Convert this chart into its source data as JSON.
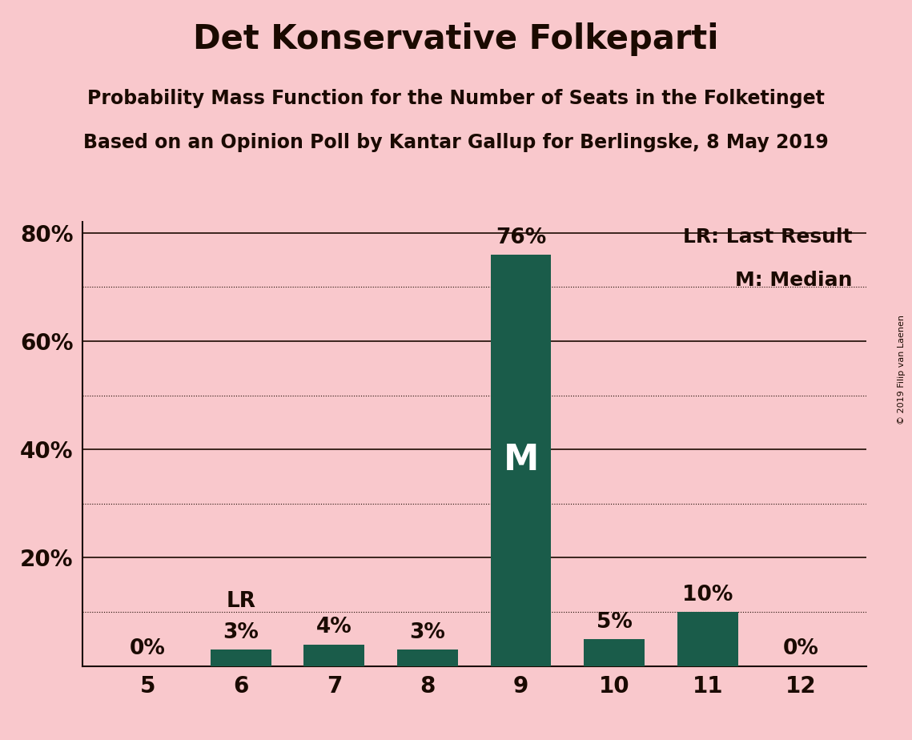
{
  "title": "Det Konservative Folkeparti",
  "subtitle1": "Probability Mass Function for the Number of Seats in the Folketinget",
  "subtitle2": "Based on an Opinion Poll by Kantar Gallup for Berlingske, 8 May 2019",
  "copyright": "© 2019 Filip van Laenen",
  "categories": [
    5,
    6,
    7,
    8,
    9,
    10,
    11,
    12
  ],
  "values": [
    0,
    3,
    4,
    3,
    76,
    5,
    10,
    0
  ],
  "bar_color": "#1a5c4a",
  "background_color": "#f9c8cc",
  "text_color": "#1a0a00",
  "median_seat": 9,
  "last_result_seat": 6,
  "legend_lr": "LR: Last Result",
  "legend_m": "M: Median",
  "ylim_max": 82,
  "ytick_positions": [
    0,
    20,
    40,
    60,
    80
  ],
  "ytick_labels": [
    "",
    "20%",
    "40%",
    "60%",
    "80%"
  ],
  "solid_lines": [
    20,
    40,
    60,
    80
  ],
  "dotted_lines": [
    10,
    30,
    50,
    70
  ],
  "bar_width": 0.65,
  "title_fontsize": 30,
  "subtitle_fontsize": 17,
  "tick_fontsize": 20,
  "label_fontsize": 19,
  "legend_fontsize": 18,
  "median_label_fontsize": 32
}
